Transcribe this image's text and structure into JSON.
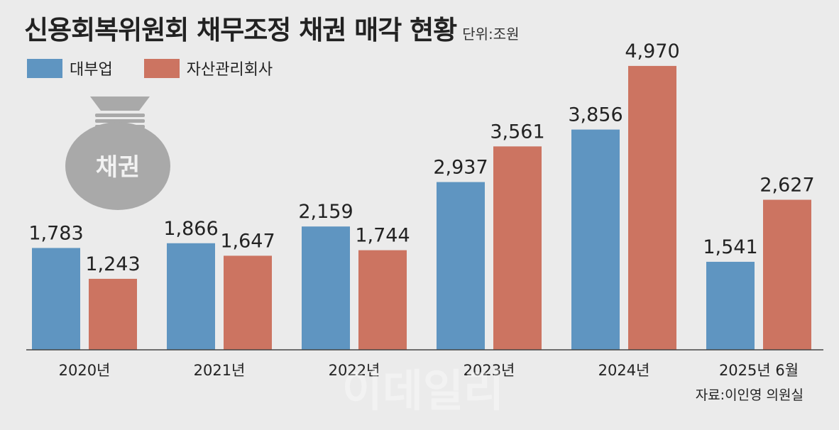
{
  "title": "신용회복위원회 채무조정 채권 매각 현황",
  "unit": "단위:조원",
  "source": "자료:이인영 의원실",
  "watermark": "이데일리",
  "icon": {
    "name": "money-bag-icon",
    "label": "채권"
  },
  "colors": {
    "series_a": "#5f95c1",
    "series_b": "#cc7461",
    "background": "#ebebeb"
  },
  "chart_data": {
    "type": "bar",
    "categories": [
      "2020년",
      "2021년",
      "2022년",
      "2023년",
      "2024년",
      "2025년 6월"
    ],
    "series": [
      {
        "name": "대부업",
        "values": [
          1.783,
          1.866,
          2.159,
          2.937,
          3.856,
          1.541
        ],
        "labels": [
          "1,783",
          "1,866",
          "2,159",
          "2,937",
          "3,856",
          "1,541"
        ]
      },
      {
        "name": "자산관리회사",
        "values": [
          1.243,
          1.647,
          1.744,
          3.561,
          4.97,
          2.627
        ],
        "labels": [
          "1,243",
          "1,647",
          "1,744",
          "3,561",
          "4,970",
          "2,627"
        ]
      }
    ],
    "ylim": [
      0,
      5.6
    ],
    "legend_position": "top-left",
    "grid": false
  }
}
